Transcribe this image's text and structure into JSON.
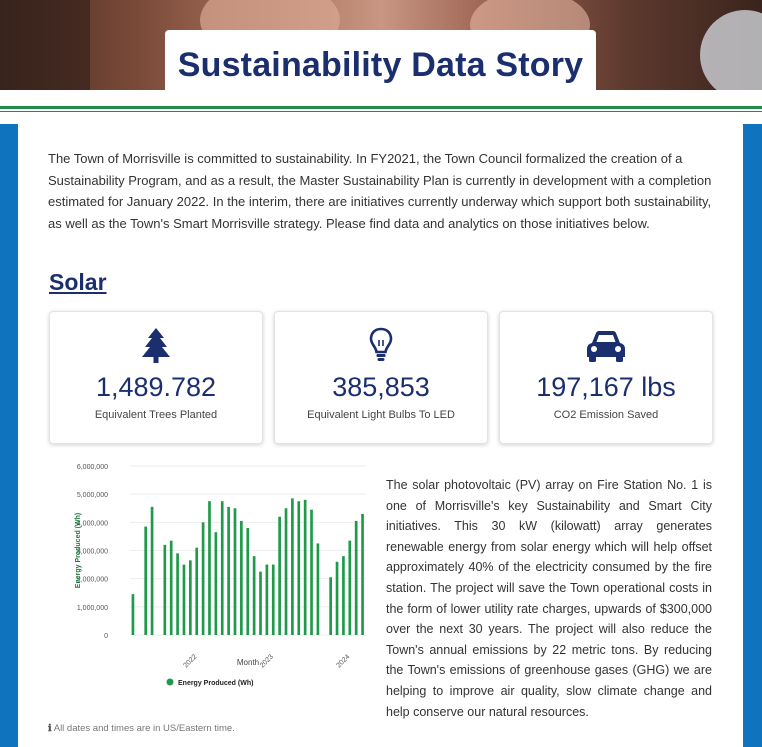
{
  "header": {
    "title": "Sustainability Data Story"
  },
  "intro": "The Town of Morrisville is committed to sustainability. In FY2021, the Town Council formalized the creation of a Sustainability Program, and as a result, the Master Sustainability Plan is currently in development with a completion estimated for January 2022. In the interim, there are initiatives currently underway which support both sustainability, as well as the Town's Smart Morrisville strategy. Please find data and analytics on those initiatives below.",
  "solar": {
    "heading": "Solar",
    "stats": [
      {
        "icon": "tree-icon",
        "value": "1,489.782",
        "label": "Equivalent Trees Planted"
      },
      {
        "icon": "light-bulb-icon",
        "value": "385,853",
        "label": "Equivalent Light Bulbs To LED"
      },
      {
        "icon": "car-icon",
        "value": "197,167 lbs",
        "label": "CO2 Emission Saved"
      }
    ],
    "description": "The solar photovoltaic (PV) array on Fire Station No. 1 is one of Morrisville's key Sustainability and Smart City initiatives. This 30 kW (kilowatt) array generates renewable energy from solar energy which will help offset approximately 40% of the electricity consumed by the fire station. The project will save the Town operational costs in the form of lower utility rate charges, upwards of $300,000 over the next 30 years. The project will also reduce the Town's annual emissions by 22 metric tons. By reducing the Town's emissions of greenhouse gases (GHG) we are helping to improve air quality, slow climate change and help conserve our natural resources."
  },
  "footnote": "All dates and times are in US/Eastern time.",
  "colors": {
    "accent": "#1b2f6e",
    "bar": "#1f9a4a",
    "frame": "#0f74bd"
  },
  "chart_data": {
    "type": "bar",
    "xlabel": "Month",
    "ylabel": "Energy Produced (Wh)",
    "ylim": [
      0,
      6000000
    ],
    "yticks": [
      "0",
      "1,000,000",
      "2,000,000",
      "3,000,000",
      "4,000,000",
      "5,000,000",
      "6,000,000"
    ],
    "xticks": [
      {
        "label": "2022",
        "index": 10
      },
      {
        "label": "2023",
        "index": 22
      },
      {
        "label": "2024",
        "index": 34
      }
    ],
    "legend": "Energy Produced (Wh)",
    "legend_position": "bottom",
    "series": [
      {
        "name": "Energy Produced (Wh)",
        "values": [
          1450000,
          0,
          3850000,
          4550000,
          0,
          3200000,
          3350000,
          2900000,
          2500000,
          2650000,
          3100000,
          4000000,
          4750000,
          3650000,
          4750000,
          4550000,
          4500000,
          4050000,
          3800000,
          2800000,
          2250000,
          2500000,
          2500000,
          4200000,
          4500000,
          4850000,
          4750000,
          4800000,
          4450000,
          3250000,
          0,
          2050000,
          2600000,
          2800000,
          3350000,
          4050000,
          4300000
        ]
      }
    ]
  }
}
